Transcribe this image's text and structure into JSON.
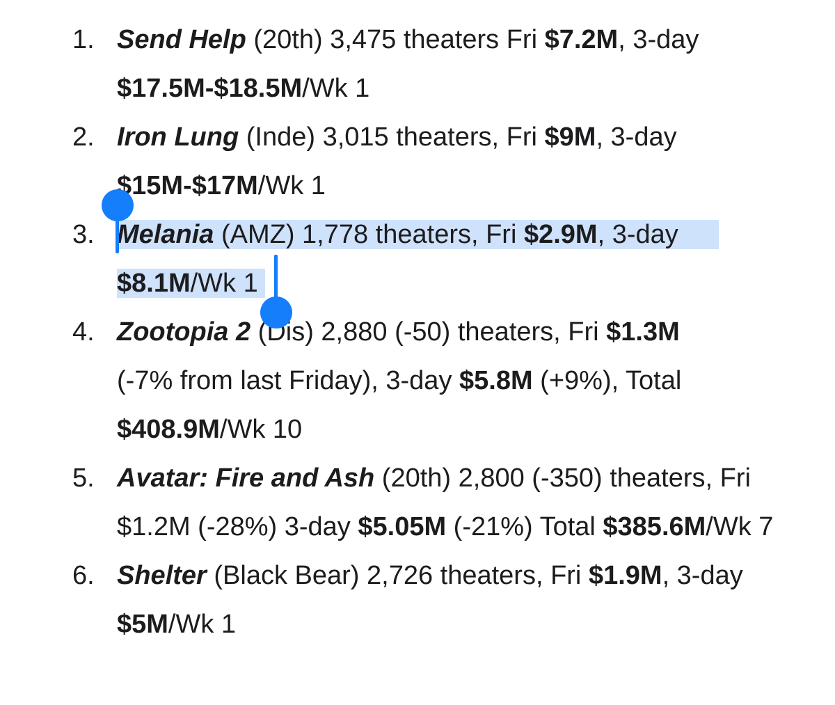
{
  "items": [
    {
      "number": "1.",
      "title": "Send Help",
      "parts": [
        " (20th) 3,475 theaters Fri ",
        "$7.2M",
        ", 3-day ",
        "$17.5M-$18.5M",
        "/Wk 1"
      ]
    },
    {
      "number": "2.",
      "title": "Iron Lung",
      "parts": [
        " (Inde) 3,015 theaters, Fri ",
        "$9M",
        ", 3-day ",
        "$15M-$17M",
        "/Wk 1"
      ]
    },
    {
      "number": "3.",
      "title": "Melania",
      "parts": [
        " (AMZ) 1,778 theaters, Fri ",
        "$2.9M",
        ", 3-day",
        "$8.1M",
        "/Wk 1"
      ]
    },
    {
      "number": "4.",
      "title": "Zootopia 2",
      "parts": [
        " (Dis) 2,880 (-50) theaters, Fri ",
        "$1.3M",
        " (-7% from last Friday), 3-day ",
        "$5.8M",
        " (+9%), Total ",
        "$408.9M",
        "/Wk 10"
      ]
    },
    {
      "number": "5.",
      "title": "Avatar: Fire and Ash",
      "parts": [
        " (20th) 2,800 (-350) theaters, Fri $1.2M (-28%) 3-day ",
        "$5.05M",
        " (-21%) Total ",
        "$385.6M",
        "/Wk 7"
      ]
    },
    {
      "number": "6.",
      "title": "Shelter",
      "parts": [
        " (Black Bear) 2,726 theaters, Fri ",
        "$1.9M",
        ", 3-day ",
        "$5M",
        "/Wk 1"
      ]
    }
  ],
  "selection": {
    "highlight_color": "#cfe2fb",
    "handle_color": "#147efb",
    "selected_item": 3
  }
}
